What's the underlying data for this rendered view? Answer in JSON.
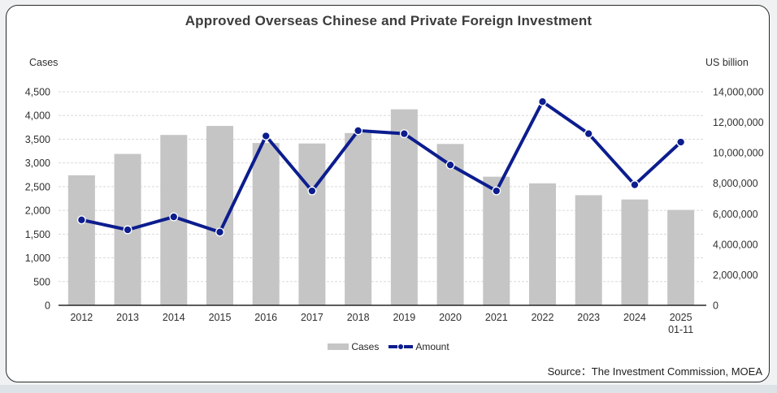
{
  "title": "Approved Overseas Chinese and Private Foreign Investment",
  "axes": {
    "left_unit_label": "Cases",
    "right_unit_label": "US billion"
  },
  "legend": {
    "cases_label": "Cases",
    "amount_label": "Amount"
  },
  "source_text": "Source：The Investment Commission, MOEA",
  "colors": {
    "bar": "#c5c5c5",
    "line": "#0c1d8e",
    "point_fill": "#0c1d8e",
    "point_ring": "#ffffff",
    "grid": "#d9d9d9",
    "axis_line": "#262626",
    "tick_text": "#303030",
    "title_text": "#3c3c3c"
  },
  "chart_data": {
    "type": "bar",
    "subtype": "bar+line combo, dual axis",
    "categories": [
      "2012",
      "2013",
      "2014",
      "2015",
      "2016",
      "2017",
      "2018",
      "2019",
      "2020",
      "2021",
      "2022",
      "2023",
      "2024",
      "2025"
    ],
    "last_category_note": "01-11",
    "series": [
      {
        "name": "Cases",
        "type": "bar",
        "axis": "left",
        "values": [
          2740,
          3190,
          3590,
          3780,
          3420,
          3410,
          3630,
          4130,
          3400,
          2710,
          2570,
          2320,
          2230,
          2010
        ]
      },
      {
        "name": "Amount",
        "type": "line",
        "axis": "right",
        "values": [
          5600000,
          4950000,
          5800000,
          4800000,
          11100000,
          7500000,
          11450000,
          11250000,
          9200000,
          7500000,
          13350000,
          11250000,
          7900000,
          10700000
        ]
      }
    ],
    "left_axis": {
      "label": "Cases",
      "min": 0,
      "max": 4500,
      "tick_step": 500,
      "tick_labels": [
        "0",
        "500",
        "1,000",
        "1,500",
        "2,000",
        "2,500",
        "3,000",
        "3,500",
        "4,000",
        "4,500"
      ]
    },
    "right_axis": {
      "label": "US billion",
      "min": 0,
      "max": 14000000,
      "tick_step": 2000000,
      "tick_labels": [
        "0",
        "2,000,000",
        "4,000,000",
        "6,000,000",
        "8,000,000",
        "10,000,000",
        "12,000,000",
        "14,000,000"
      ]
    },
    "grid": "dashed horizontal gridlines at left-axis ticks",
    "legend_position": "bottom-center"
  }
}
